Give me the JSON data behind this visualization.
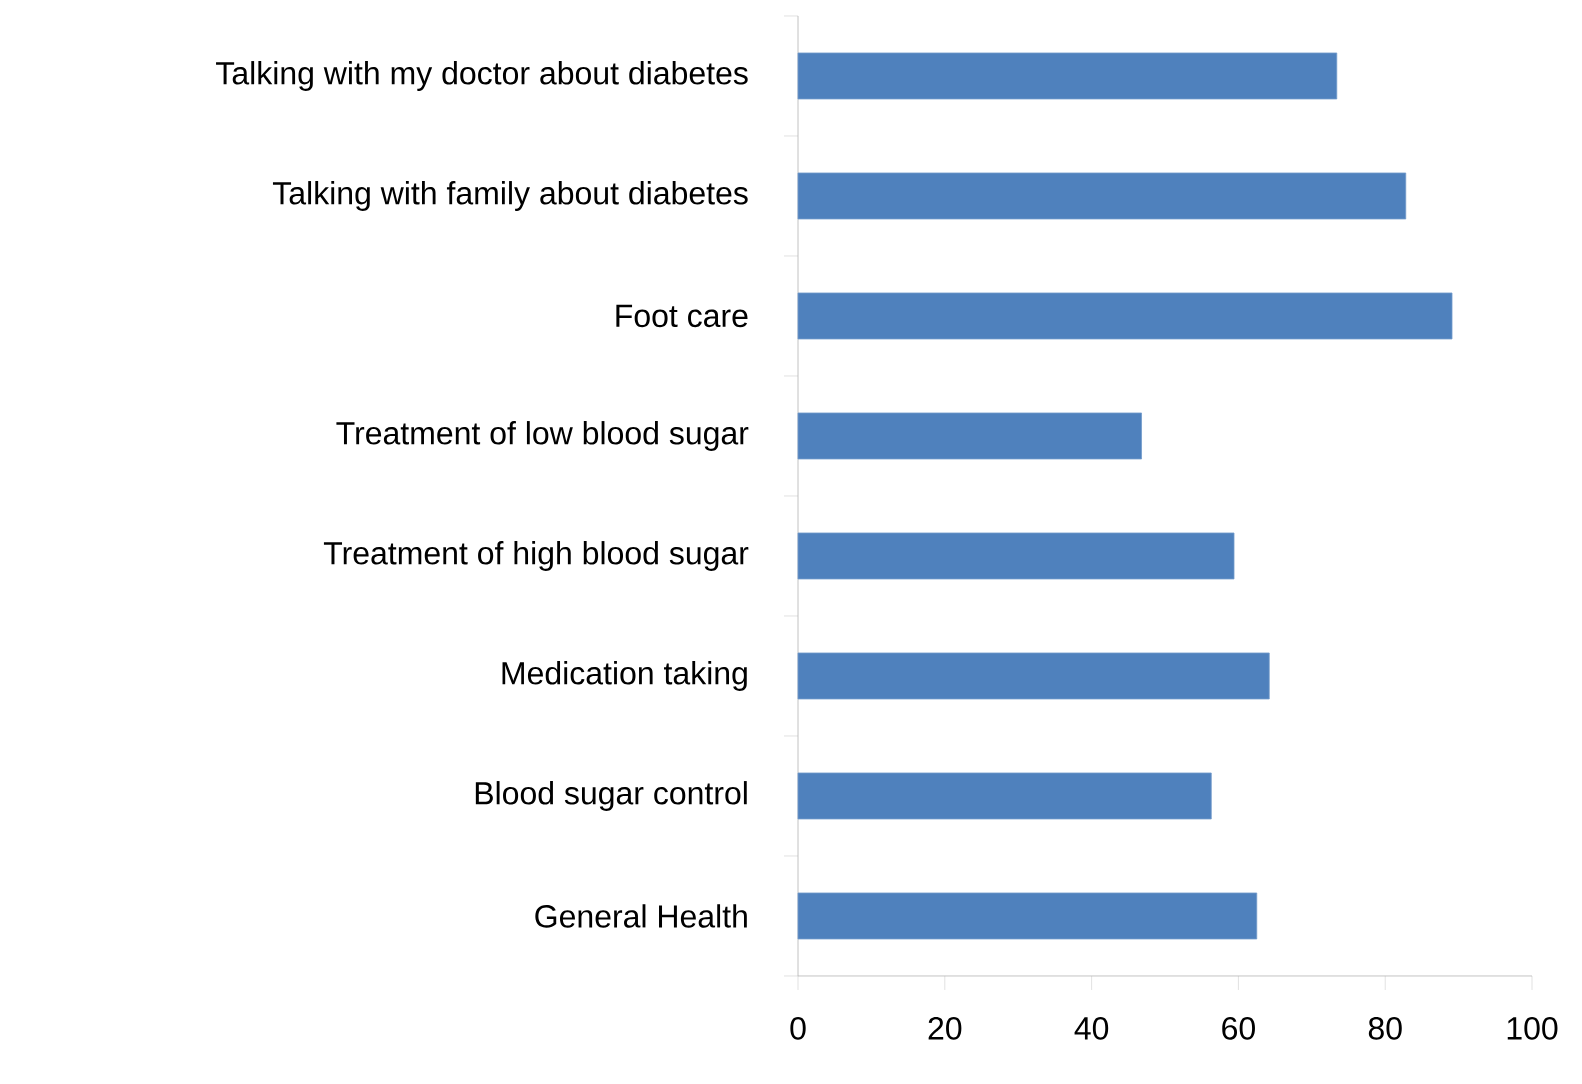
{
  "chart_data": {
    "type": "bar",
    "orientation": "horizontal",
    "categories": [
      "Talking with my doctor about diabetes",
      "Talking with family about diabetes",
      "Foot care",
      "Treatment of low blood sugar",
      "Treatment of high blood sugar",
      "Medication taking",
      "Blood sugar control",
      "General Health"
    ],
    "values": [
      73.4,
      82.8,
      89.1,
      46.8,
      59.4,
      64.2,
      56.3,
      62.5
    ],
    "color": "#4f81bd",
    "xlim": [
      0,
      100
    ],
    "xticks": [
      0,
      20,
      40,
      60,
      80,
      100
    ]
  }
}
